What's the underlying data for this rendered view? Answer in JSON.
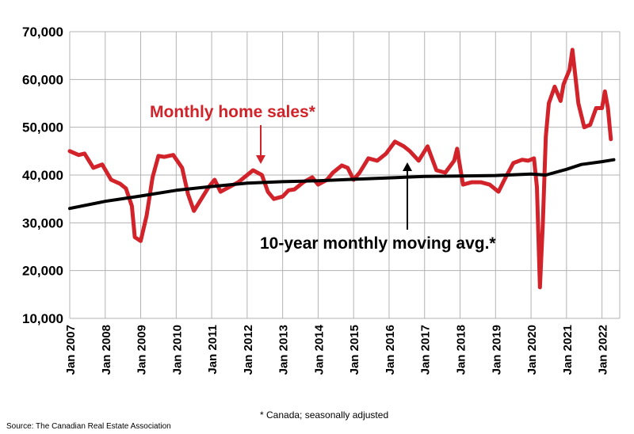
{
  "chart_data": {
    "type": "line",
    "ylim": [
      10000,
      70000
    ],
    "y_ticks": [
      "10,000",
      "20,000",
      "30,000",
      "40,000",
      "50,000",
      "60,000",
      "70,000"
    ],
    "y_tick_values": [
      10000,
      20000,
      30000,
      40000,
      50000,
      60000,
      70000
    ],
    "x_range": [
      "2007-01",
      "2022-07"
    ],
    "x_ticks": [
      "Jan 2007",
      "Jan 2008",
      "Jan 2009",
      "Jan 2010",
      "Jan 2011",
      "Jan 2012",
      "Jan 2013",
      "Jan 2014",
      "Jan 2015",
      "Jan 2016",
      "Jan 2017",
      "Jan 2018",
      "Jan 2019",
      "Jan 2020",
      "Jan 2021",
      "Jan 2022"
    ],
    "grid": true,
    "series": [
      {
        "name": "Monthly home sales*",
        "color": "#d2232a",
        "points": [
          [
            "2007-01",
            45000
          ],
          [
            "2007-04",
            44200
          ],
          [
            "2007-06",
            44500
          ],
          [
            "2007-09",
            41500
          ],
          [
            "2007-12",
            42200
          ],
          [
            "2008-03",
            39000
          ],
          [
            "2008-06",
            38200
          ],
          [
            "2008-08",
            37200
          ],
          [
            "2008-10",
            33500
          ],
          [
            "2008-11",
            27000
          ],
          [
            "2009-01",
            26200
          ],
          [
            "2009-03",
            31500
          ],
          [
            "2009-05",
            39500
          ],
          [
            "2009-07",
            44000
          ],
          [
            "2009-09",
            43800
          ],
          [
            "2009-12",
            44200
          ],
          [
            "2010-03",
            41500
          ],
          [
            "2010-05",
            36000
          ],
          [
            "2010-07",
            32500
          ],
          [
            "2010-09",
            34500
          ],
          [
            "2010-12",
            37500
          ],
          [
            "2011-02",
            39000
          ],
          [
            "2011-04",
            36500
          ],
          [
            "2011-07",
            37500
          ],
          [
            "2011-10",
            38500
          ],
          [
            "2012-01",
            40000
          ],
          [
            "2012-03",
            41000
          ],
          [
            "2012-06",
            40000
          ],
          [
            "2012-08",
            36500
          ],
          [
            "2012-10",
            35000
          ],
          [
            "2013-01",
            35500
          ],
          [
            "2013-03",
            36800
          ],
          [
            "2013-05",
            37000
          ],
          [
            "2013-08",
            38500
          ],
          [
            "2013-11",
            39500
          ],
          [
            "2014-01",
            38000
          ],
          [
            "2014-04",
            39000
          ],
          [
            "2014-06",
            40500
          ],
          [
            "2014-09",
            42000
          ],
          [
            "2014-11",
            41500
          ],
          [
            "2015-01",
            39000
          ],
          [
            "2015-03",
            40500
          ],
          [
            "2015-06",
            43500
          ],
          [
            "2015-09",
            43000
          ],
          [
            "2015-12",
            44500
          ],
          [
            "2016-03",
            47000
          ],
          [
            "2016-06",
            46000
          ],
          [
            "2016-08",
            45000
          ],
          [
            "2016-11",
            43000
          ],
          [
            "2017-02",
            46000
          ],
          [
            "2017-05",
            41000
          ],
          [
            "2017-08",
            40500
          ],
          [
            "2017-11",
            43000
          ],
          [
            "2017-12",
            45500
          ],
          [
            "2018-02",
            38000
          ],
          [
            "2018-05",
            38500
          ],
          [
            "2018-08",
            38500
          ],
          [
            "2018-11",
            38000
          ],
          [
            "2019-02",
            36500
          ],
          [
            "2019-04",
            39000
          ],
          [
            "2019-07",
            42500
          ],
          [
            "2019-10",
            43200
          ],
          [
            "2019-12",
            43000
          ],
          [
            "2020-02",
            43500
          ],
          [
            "2020-03",
            37500
          ],
          [
            "2020-04",
            16500
          ],
          [
            "2020-05",
            30000
          ],
          [
            "2020-06",
            48000
          ],
          [
            "2020-07",
            55000
          ],
          [
            "2020-09",
            58500
          ],
          [
            "2020-11",
            55500
          ],
          [
            "2020-12",
            59000
          ],
          [
            "2021-02",
            62000
          ],
          [
            "2021-03",
            66200
          ],
          [
            "2021-05",
            55000
          ],
          [
            "2021-07",
            50000
          ],
          [
            "2021-09",
            50500
          ],
          [
            "2021-11",
            54000
          ],
          [
            "2022-01",
            54000
          ],
          [
            "2022-02",
            57500
          ],
          [
            "2022-03",
            54000
          ],
          [
            "2022-04",
            47500
          ]
        ]
      },
      {
        "name": "10-year monthly moving avg.*",
        "color": "#000000",
        "points": [
          [
            "2007-01",
            33000
          ],
          [
            "2008-01",
            34500
          ],
          [
            "2009-01",
            35600
          ],
          [
            "2010-01",
            36800
          ],
          [
            "2011-01",
            37600
          ],
          [
            "2012-01",
            38300
          ],
          [
            "2013-01",
            38600
          ],
          [
            "2014-01",
            38800
          ],
          [
            "2015-01",
            39100
          ],
          [
            "2016-01",
            39400
          ],
          [
            "2017-01",
            39700
          ],
          [
            "2018-01",
            39800
          ],
          [
            "2019-01",
            39900
          ],
          [
            "2020-01",
            40200
          ],
          [
            "2020-06",
            40000
          ],
          [
            "2021-01",
            41200
          ],
          [
            "2021-06",
            42200
          ],
          [
            "2022-01",
            42800
          ],
          [
            "2022-05",
            43200
          ]
        ]
      }
    ],
    "annotations": {
      "sales_label": "Monthly home sales*",
      "avg_label": "10-year monthly moving avg.*"
    },
    "footnote": "* Canada; seasonally adjusted",
    "source": "Source: The Canadian Real Estate Association"
  }
}
